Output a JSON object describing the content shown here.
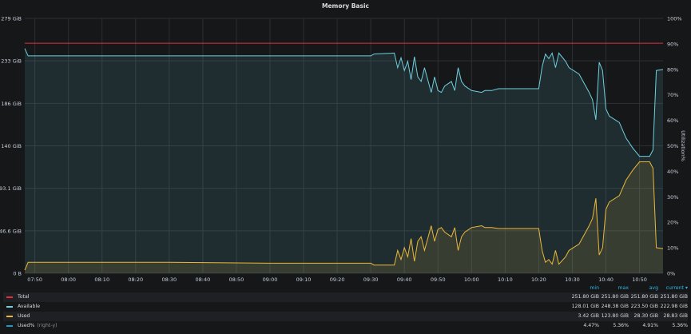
{
  "panel": {
    "title": "Memory Basic"
  },
  "colors": {
    "total": "#e02f44",
    "available": "#6ed0e0",
    "used": "#eab839",
    "used_pct": "#1f9ac8"
  },
  "chart_data": {
    "type": "line",
    "title": "Memory Basic",
    "x_ticks": [
      "07:50",
      "08:00",
      "08:10",
      "08:20",
      "08:30",
      "08:40",
      "08:50",
      "09:00",
      "09:10",
      "09:20",
      "09:30",
      "09:40",
      "09:50",
      "10:00",
      "10:10",
      "10:20",
      "10:30",
      "10:40",
      "10:50"
    ],
    "x_range": [
      "07:47",
      "10:57"
    ],
    "y_left": {
      "ticks": [
        "0 B",
        "46.6 GiB",
        "93.1 GiB",
        "140 GiB",
        "186 GiB",
        "233 GiB",
        "279 GiB"
      ],
      "ylim": [
        0,
        279
      ]
    },
    "y_right": {
      "label": "Utilization%",
      "ticks": [
        "0%",
        "10%",
        "20%",
        "30%",
        "40%",
        "50%",
        "60%",
        "70%",
        "80%",
        "90%",
        "100%"
      ],
      "ylim": [
        0,
        100
      ]
    },
    "grid": true,
    "series": [
      {
        "name": "Total",
        "color": "#e02f44",
        "fill": false,
        "points": [
          [
            "07:47",
            251.8
          ],
          [
            "10:57",
            251.8
          ]
        ]
      },
      {
        "name": "Available",
        "color": "#6ed0e0",
        "fill": true,
        "points": [
          [
            "07:47",
            246
          ],
          [
            "07:48",
            238
          ],
          [
            "08:00",
            238
          ],
          [
            "08:30",
            238
          ],
          [
            "09:00",
            238
          ],
          [
            "09:30",
            238
          ],
          [
            "09:31",
            240
          ],
          [
            "09:37",
            241
          ],
          [
            "09:38",
            225
          ],
          [
            "09:39",
            236
          ],
          [
            "09:40",
            222
          ],
          [
            "09:41",
            232
          ],
          [
            "09:42",
            212
          ],
          [
            "09:43",
            237
          ],
          [
            "09:44",
            215
          ],
          [
            "09:45",
            210
          ],
          [
            "09:46",
            225
          ],
          [
            "09:48",
            198
          ],
          [
            "09:49",
            215
          ],
          [
            "09:50",
            200
          ],
          [
            "09:51",
            198
          ],
          [
            "09:52",
            205
          ],
          [
            "09:54",
            210
          ],
          [
            "09:55",
            200
          ],
          [
            "09:56",
            225
          ],
          [
            "09:57",
            210
          ],
          [
            "09:58",
            205
          ],
          [
            "10:00",
            200
          ],
          [
            "10:03",
            198
          ],
          [
            "10:04",
            200
          ],
          [
            "10:06",
            200
          ],
          [
            "10:08",
            202
          ],
          [
            "10:19",
            202
          ],
          [
            "10:20",
            202
          ],
          [
            "10:21",
            226
          ],
          [
            "10:22",
            240
          ],
          [
            "10:23",
            235
          ],
          [
            "10:24",
            241
          ],
          [
            "10:25",
            225
          ],
          [
            "10:26",
            241
          ],
          [
            "10:28",
            232
          ],
          [
            "10:29",
            225
          ],
          [
            "10:32",
            218
          ],
          [
            "10:35",
            198
          ],
          [
            "10:36",
            190
          ],
          [
            "10:37",
            168
          ],
          [
            "10:38",
            231
          ],
          [
            "10:39",
            222
          ],
          [
            "10:40",
            180
          ],
          [
            "10:41",
            172
          ],
          [
            "10:44",
            165
          ],
          [
            "10:46",
            148
          ],
          [
            "10:48",
            137
          ],
          [
            "10:50",
            128
          ],
          [
            "10:53",
            128
          ],
          [
            "10:54",
            135
          ],
          [
            "10:55",
            222
          ],
          [
            "10:57",
            223
          ]
        ]
      },
      {
        "name": "Used",
        "color": "#eab839",
        "fill": true,
        "points": [
          [
            "07:47",
            3.4
          ],
          [
            "07:48",
            12
          ],
          [
            "08:00",
            12
          ],
          [
            "08:30",
            12
          ],
          [
            "09:00",
            11
          ],
          [
            "09:30",
            11
          ],
          [
            "09:31",
            9
          ],
          [
            "09:37",
            9
          ],
          [
            "09:38",
            25
          ],
          [
            "09:39",
            15
          ],
          [
            "09:40",
            28
          ],
          [
            "09:41",
            18
          ],
          [
            "09:42",
            38
          ],
          [
            "09:43",
            13
          ],
          [
            "09:44",
            35
          ],
          [
            "09:45",
            40
          ],
          [
            "09:46",
            25
          ],
          [
            "09:48",
            52
          ],
          [
            "09:49",
            35
          ],
          [
            "09:50",
            48
          ],
          [
            "09:51",
            50
          ],
          [
            "09:52",
            45
          ],
          [
            "09:54",
            40
          ],
          [
            "09:55",
            50
          ],
          [
            "09:56",
            25
          ],
          [
            "09:57",
            40
          ],
          [
            "09:58",
            45
          ],
          [
            "10:00",
            50
          ],
          [
            "10:03",
            52
          ],
          [
            "10:04",
            50
          ],
          [
            "10:06",
            50
          ],
          [
            "10:08",
            49
          ],
          [
            "10:19",
            49
          ],
          [
            "10:20",
            49
          ],
          [
            "10:21",
            25
          ],
          [
            "10:22",
            12
          ],
          [
            "10:23",
            15
          ],
          [
            "10:24",
            10
          ],
          [
            "10:25",
            25
          ],
          [
            "10:26",
            10
          ],
          [
            "10:28",
            18
          ],
          [
            "10:29",
            25
          ],
          [
            "10:32",
            32
          ],
          [
            "10:35",
            52
          ],
          [
            "10:36",
            60
          ],
          [
            "10:37",
            82
          ],
          [
            "10:38",
            20
          ],
          [
            "10:39",
            28
          ],
          [
            "10:40",
            70
          ],
          [
            "10:41",
            78
          ],
          [
            "10:44",
            85
          ],
          [
            "10:46",
            102
          ],
          [
            "10:48",
            113
          ],
          [
            "10:50",
            122
          ],
          [
            "10:53",
            122
          ],
          [
            "10:54",
            115
          ],
          [
            "10:55",
            28
          ],
          [
            "10:57",
            27
          ]
        ]
      }
    ]
  },
  "legend": {
    "headers": [
      "min",
      "max",
      "avg",
      "current"
    ],
    "sort_glyph": "▾",
    "rows": [
      {
        "name": "Total",
        "sub": "",
        "color": "#e02f44",
        "min": "251.80 GiB",
        "max": "251.80 GiB",
        "avg": "251.80 GiB",
        "current": "251.80 GiB"
      },
      {
        "name": "Available",
        "sub": "",
        "color": "#6ed0e0",
        "min": "128.01 GiB",
        "max": "248.38 GiB",
        "avg": "223.50 GiB",
        "current": "222.98 GiB"
      },
      {
        "name": "Used",
        "sub": "",
        "color": "#eab839",
        "min": "3.42 GiB",
        "max": "123.80 GiB",
        "avg": "28.30 GiB",
        "current": "28.83 GiB"
      },
      {
        "name": "Used%",
        "sub": "(right-y)",
        "color": "#1f9ac8",
        "min": "4.47%",
        "max": "5.36%",
        "avg": "4.91%",
        "current": "5.36%"
      }
    ]
  }
}
